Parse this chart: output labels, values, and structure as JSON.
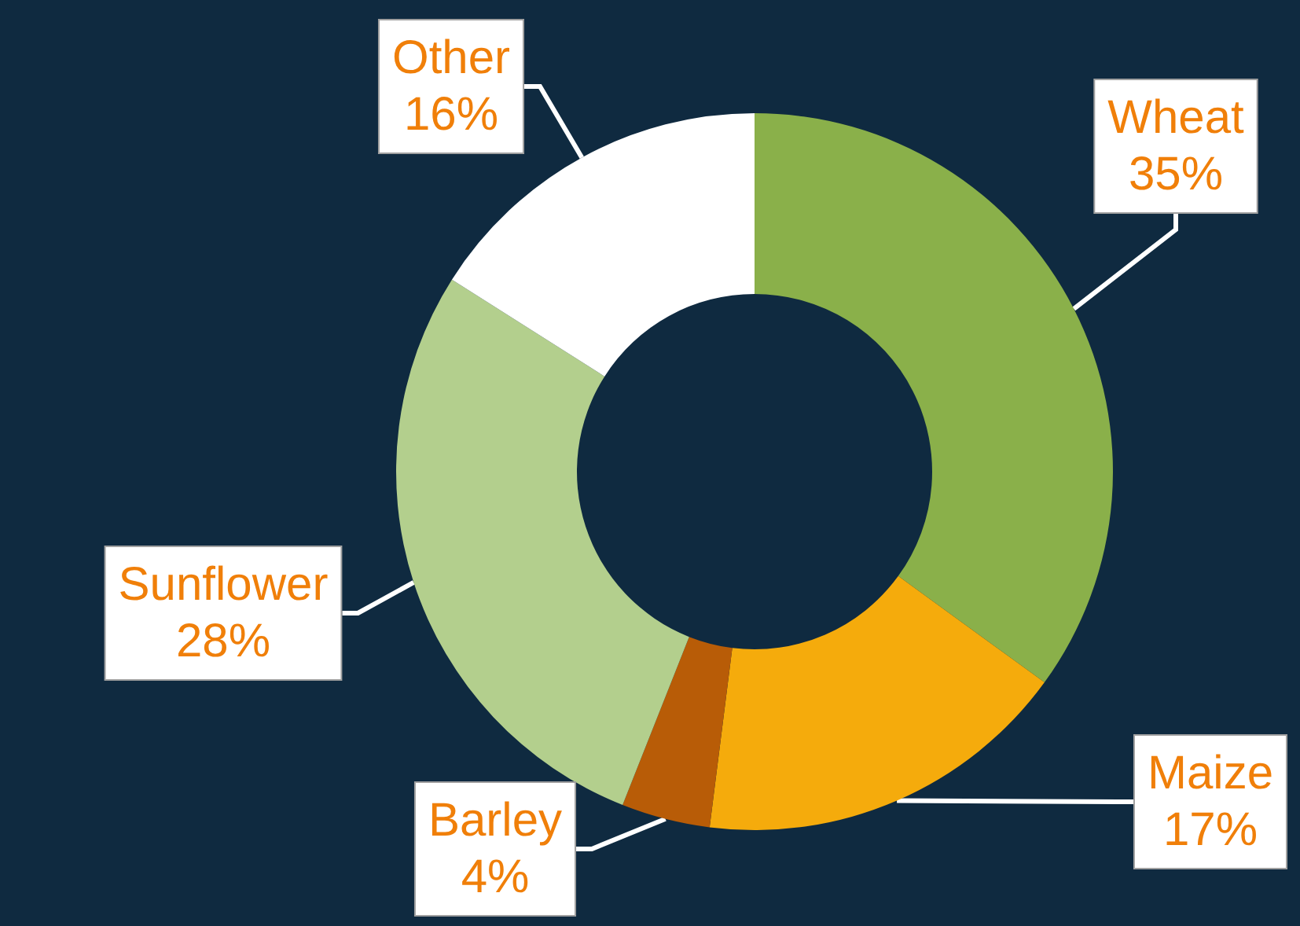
{
  "chart_data": {
    "type": "donut",
    "categories": [
      "Wheat",
      "Maize",
      "Barley",
      "Sunflower",
      "Other"
    ],
    "values": [
      35,
      17,
      4,
      28,
      16
    ],
    "value_labels": [
      "35%",
      "17%",
      "4%",
      "28%",
      "16%"
    ],
    "colors": [
      "#8ab04a",
      "#f5ab0c",
      "#b85c07",
      "#b3cf8d",
      "#ffffff"
    ]
  }
}
